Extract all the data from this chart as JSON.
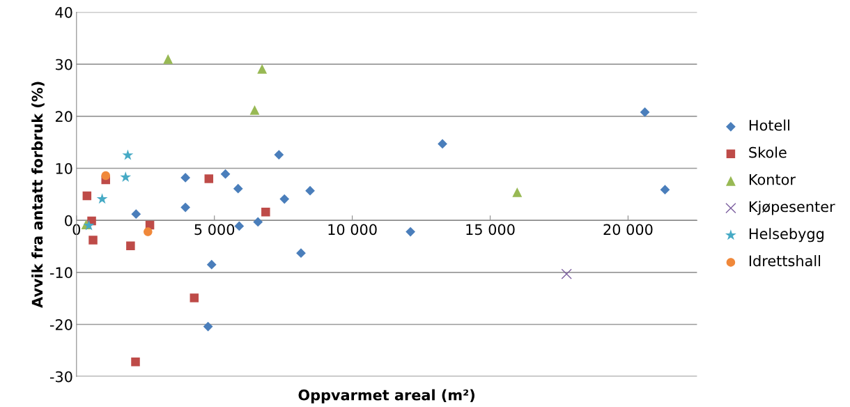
{
  "chart_data": {
    "type": "scatter",
    "xlabel": "Oppvarmet areal (m²)",
    "ylabel": "Avvik fra antatt forbruk (%)",
    "xlim": [
      0,
      22500
    ],
    "xticks": [
      {
        "value": 0,
        "label": "0"
      },
      {
        "value": 5000,
        "label": "5 000"
      },
      {
        "value": 10000,
        "label": "10 000"
      },
      {
        "value": 15000,
        "label": "15 000"
      },
      {
        "value": 20000,
        "label": "20 000"
      }
    ],
    "ylim": [
      -30,
      40
    ],
    "yticks": [
      -30,
      -20,
      -10,
      0,
      10,
      20,
      30,
      40
    ],
    "grid": "y",
    "legend": "right",
    "series": [
      {
        "name": "Hotell",
        "color": "#4a7ebb",
        "marker": "diamond",
        "x": [
          2160,
          3950,
          3950,
          4900,
          4770,
          5400,
          5860,
          5900,
          6580,
          7340,
          7540,
          8140,
          8470,
          12110,
          13270,
          20610,
          21340
        ],
        "values": [
          1.2,
          8.2,
          2.5,
          -8.5,
          -20.4,
          8.9,
          6.1,
          -1.1,
          -0.3,
          12.6,
          4.1,
          -6.3,
          5.7,
          -2.2,
          14.7,
          20.8,
          5.9
        ]
      },
      {
        "name": "Skole",
        "color": "#be4b48",
        "marker": "square",
        "x": [
          380,
          550,
          600,
          1060,
          1960,
          2140,
          2660,
          4270,
          4800,
          6860
        ],
        "values": [
          4.7,
          -0.1,
          -3.8,
          7.8,
          -4.9,
          -27.2,
          -0.9,
          -14.9,
          8.0,
          1.6
        ]
      },
      {
        "name": "Kontor",
        "color": "#98b954",
        "marker": "triangle",
        "x": [
          350,
          3320,
          6460,
          6730,
          15980
        ],
        "values": [
          -0.8,
          31.0,
          21.2,
          29.1,
          5.4
        ]
      },
      {
        "name": "Kjøpesenter",
        "color": "#7d60a0",
        "marker": "cross",
        "x": [
          17770
        ],
        "values": [
          -10.3
        ]
      },
      {
        "name": "Helsebygg",
        "color": "#46aac5",
        "marker": "star",
        "x": [
          450,
          930,
          1780,
          1860
        ],
        "values": [
          -1.0,
          4.1,
          8.3,
          12.5
        ]
      },
      {
        "name": "Idrettshall",
        "color": "#f0883a",
        "marker": "circle",
        "x": [
          1060,
          2590
        ],
        "values": [
          8.6,
          -2.2
        ]
      }
    ]
  }
}
